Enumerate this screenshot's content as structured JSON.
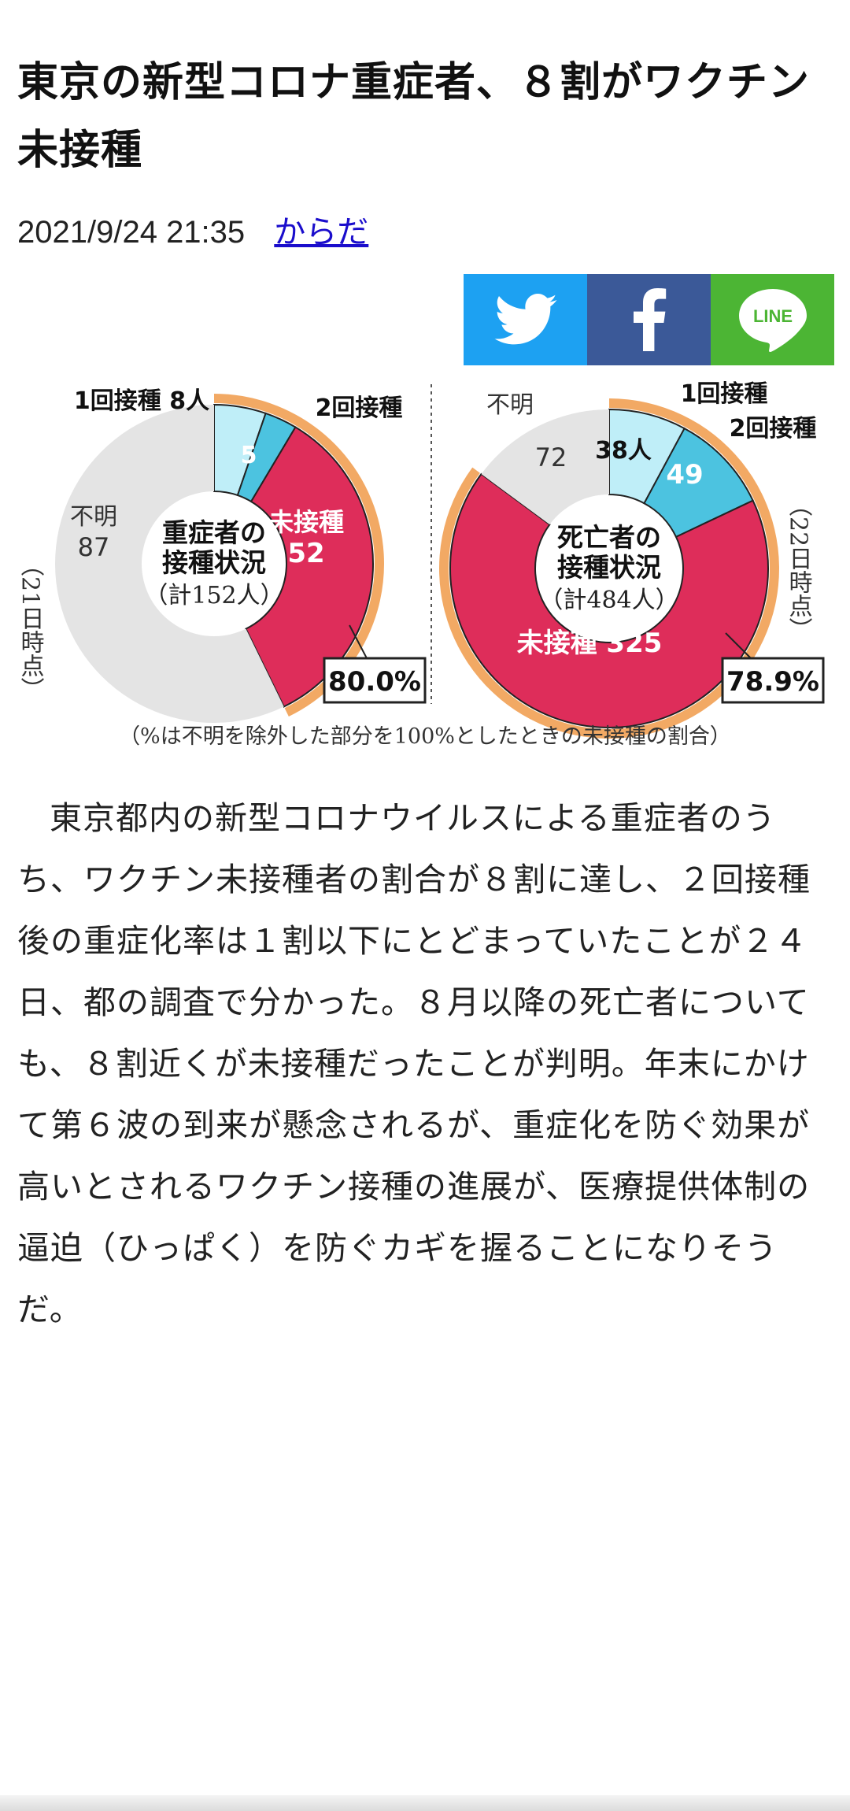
{
  "article": {
    "title": "東京の新型コロナ重症者、８割がワクチン未接種",
    "date": "2021/9/24 21:35",
    "category": "からだ",
    "body": "東京都内の新型コロナウイルスによる重症者のうち、ワクチン未接種者の割合が８割に達し、２回接種後の重症化率は１割以下にとどまっていたことが２４日、都の調査で分かった。８月以降の死亡者についても、８割近くが未接種だったことが判明。年末にかけて第６波の到来が懸念されるが、重症化を防ぐ効果が高いとされるワクチン接種の進展が、医療提供体制の逼迫（ひっぱく）を防ぐカギを握ることになりそうだ。"
  },
  "share": {
    "twitter_icon": "twitter-bird-icon",
    "facebook_icon": "facebook-f-icon",
    "line_label": "LINE",
    "colors": {
      "twitter": "#1da1f2",
      "facebook": "#3b5998",
      "line": "#4cb534"
    }
  },
  "chart_data": [
    {
      "type": "pie",
      "center_title_1": "重症者の",
      "center_title_2": "接種状況",
      "center_total": "（計152人）",
      "date_note": "（21日時点）",
      "slices": [
        {
          "label": "1回接種",
          "value": 8,
          "display": "1回接種 8人",
          "color": "#bfeef8"
        },
        {
          "label": "2回接種",
          "value": 5,
          "display": "5",
          "color": "#4cc3e0"
        },
        {
          "label": "未接種",
          "value": 52,
          "display": "52",
          "color": "#de2d5a"
        },
        {
          "label": "不明",
          "value": 87,
          "display": "87",
          "color": "#e4e4e4"
        }
      ],
      "unvaccinated_share": "80.0%"
    },
    {
      "type": "pie",
      "center_title_1": "死亡者の",
      "center_title_2": "接種状況",
      "center_total": "（計484人）",
      "date_note": "（22日時点）",
      "slices": [
        {
          "label": "1回接種",
          "value": 38,
          "display": "38人",
          "color": "#bfeef8"
        },
        {
          "label": "2回接種",
          "value": 49,
          "display": "49",
          "color": "#4cc3e0"
        },
        {
          "label": "未接種",
          "value": 325,
          "display": "未接種 325",
          "color": "#de2d5a"
        },
        {
          "label": "不明",
          "value": 72,
          "display": "72",
          "color": "#e4e4e4"
        }
      ],
      "unvaccinated_share": "78.9%"
    }
  ],
  "figure_note": "（%は不明を除外した部分を100%としたときの未接種の割合）"
}
